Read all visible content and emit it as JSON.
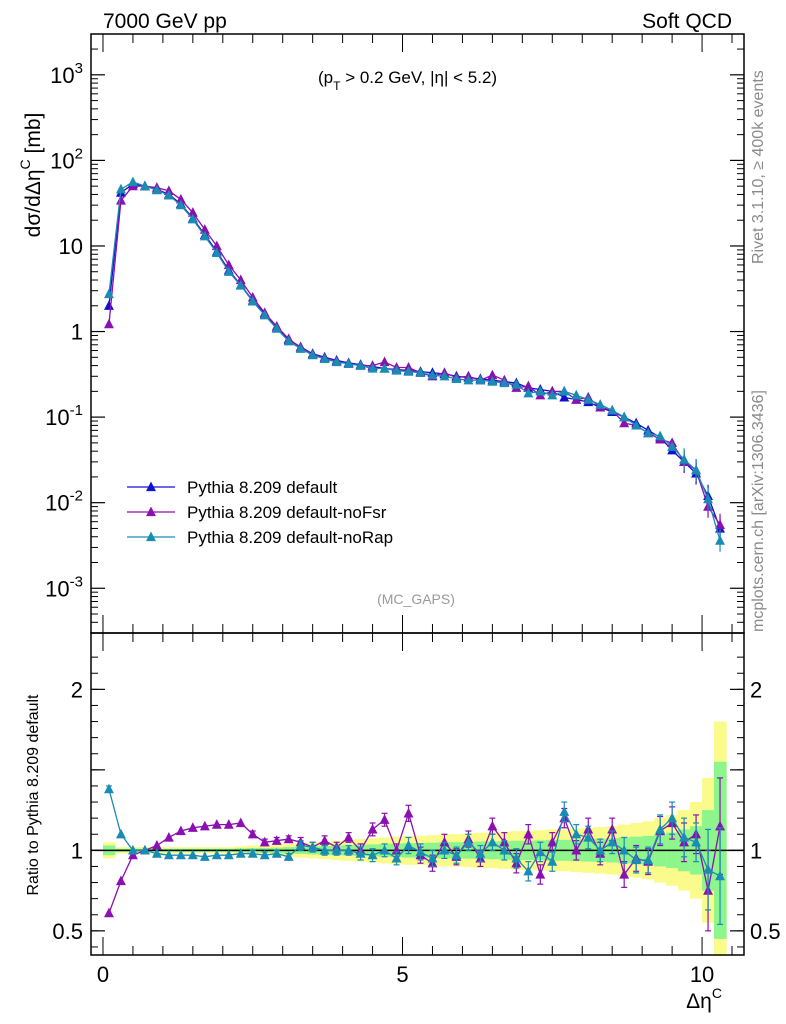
{
  "header": {
    "left": "7000 GeV pp",
    "right": "Soft QCD"
  },
  "side_labels": {
    "rivet": "Rivet 3.1.10, ≥ 400k events",
    "mcplots": "mcplots.cern.ch [arXiv:1306.3436]"
  },
  "annotation": {
    "cut": "(p_T > 0.2 GeV, |η| < 5.2)",
    "cut_parts": [
      "(p",
      "T",
      " > 0.2 GeV, |η| < 5.2)"
    ],
    "analysis": "(MC_GAPS)"
  },
  "colors": {
    "default": "#1010d0",
    "noFsr": "#8a10b0",
    "noRap": "#1a8cb4",
    "band_outer": "#fbfb8c",
    "band_inner": "#8cf58c"
  },
  "chart_data": [
    {
      "type": "line",
      "title": "",
      "ylabel": "dσ/dΔη^C [mb]",
      "ylabel_parts": [
        "dσ/dΔη",
        "C",
        " [mb]"
      ],
      "xlabel": "",
      "yscale": "log",
      "ylim": [
        0.0003,
        3000
      ],
      "xlim": [
        -0.2,
        10.7
      ],
      "y_tick_labels": [
        "10^-3",
        "10^-2",
        "10^-1",
        "1",
        "10",
        "10^2",
        "10^3"
      ],
      "legend_placement": "bottom-left",
      "x": [
        0.1,
        0.3,
        0.5,
        0.7,
        0.9,
        1.1,
        1.3,
        1.5,
        1.7,
        1.9,
        2.1,
        2.3,
        2.5,
        2.7,
        2.9,
        3.1,
        3.3,
        3.5,
        3.7,
        3.9,
        4.1,
        4.3,
        4.5,
        4.7,
        4.9,
        5.1,
        5.3,
        5.5,
        5.7,
        5.9,
        6.1,
        6.3,
        6.5,
        6.7,
        6.9,
        7.1,
        7.3,
        7.5,
        7.7,
        7.9,
        8.1,
        8.3,
        8.5,
        8.7,
        8.9,
        9.1,
        9.3,
        9.5,
        9.7,
        9.9,
        10.1,
        10.3
      ],
      "series": [
        {
          "name": "Pythia 8.209 default",
          "values": [
            2.0,
            42,
            53,
            50,
            46,
            40,
            31,
            21,
            13.5,
            8.6,
            5.2,
            3.5,
            2.3,
            1.6,
            1.1,
            0.8,
            0.66,
            0.55,
            0.5,
            0.46,
            0.43,
            0.41,
            0.39,
            0.37,
            0.36,
            0.35,
            0.34,
            0.33,
            0.32,
            0.3,
            0.29,
            0.28,
            0.27,
            0.26,
            0.25,
            0.22,
            0.21,
            0.2,
            0.17,
            0.16,
            0.15,
            0.13,
            0.115,
            0.1,
            0.085,
            0.07,
            0.058,
            0.041,
            0.03,
            0.022,
            0.012,
            0.005
          ]
        },
        {
          "name": "Pythia 8.209 default-noFsr",
          "values": [
            1.22,
            34,
            50,
            50,
            48,
            44,
            35,
            24.5,
            15.5,
            10,
            6.0,
            4.0,
            2.5,
            1.65,
            1.15,
            0.82,
            0.65,
            0.54,
            0.49,
            0.45,
            0.42,
            0.4,
            0.4,
            0.44,
            0.38,
            0.38,
            0.33,
            0.3,
            0.33,
            0.29,
            0.3,
            0.27,
            0.31,
            0.27,
            0.22,
            0.23,
            0.18,
            0.2,
            0.2,
            0.16,
            0.17,
            0.13,
            0.12,
            0.085,
            0.08,
            0.065,
            0.055,
            0.05,
            0.03,
            0.024,
            0.009,
            0.0055
          ]
        },
        {
          "name": "Pythia 8.209 default-noRap",
          "values": [
            2.75,
            46,
            56,
            50,
            45,
            39,
            30,
            20.5,
            13.0,
            8.3,
            5.0,
            3.45,
            2.25,
            1.55,
            1.08,
            0.77,
            0.63,
            0.53,
            0.48,
            0.44,
            0.42,
            0.4,
            0.37,
            0.37,
            0.35,
            0.34,
            0.33,
            0.31,
            0.3,
            0.28,
            0.27,
            0.27,
            0.26,
            0.25,
            0.24,
            0.19,
            0.2,
            0.18,
            0.2,
            0.18,
            0.16,
            0.14,
            0.12,
            0.1,
            0.08,
            0.065,
            0.06,
            0.045,
            0.032,
            0.024,
            0.011,
            0.0036
          ]
        }
      ]
    },
    {
      "type": "line",
      "title": "",
      "ylabel": "Ratio to Pythia 8.209 default",
      "xlabel": "Δη^C",
      "xlabel_parts": [
        "Δη",
        "C"
      ],
      "ylim": [
        0.35,
        2.35
      ],
      "xlim": [
        -0.2,
        10.7
      ],
      "x_tick_labels": [
        "0",
        "5",
        "10"
      ],
      "y_tick_labels": [
        "0.5",
        "1",
        "2"
      ],
      "x": [
        0.1,
        0.3,
        0.5,
        0.7,
        0.9,
        1.1,
        1.3,
        1.5,
        1.7,
        1.9,
        2.1,
        2.3,
        2.5,
        2.7,
        2.9,
        3.1,
        3.3,
        3.5,
        3.7,
        3.9,
        4.1,
        4.3,
        4.5,
        4.7,
        4.9,
        5.1,
        5.3,
        5.5,
        5.7,
        5.9,
        6.1,
        6.3,
        6.5,
        6.7,
        6.9,
        7.1,
        7.3,
        7.5,
        7.7,
        7.9,
        8.1,
        8.3,
        8.5,
        8.7,
        8.9,
        9.1,
        9.3,
        9.5,
        9.7,
        9.9,
        10.1,
        10.3
      ],
      "band_half_width_outer": [
        0.05,
        0.02,
        0.02,
        0.02,
        0.02,
        0.02,
        0.02,
        0.02,
        0.02,
        0.02,
        0.02,
        0.025,
        0.03,
        0.03,
        0.035,
        0.04,
        0.045,
        0.05,
        0.055,
        0.06,
        0.065,
        0.07,
        0.075,
        0.08,
        0.085,
        0.09,
        0.09,
        0.095,
        0.1,
        0.1,
        0.105,
        0.11,
        0.11,
        0.115,
        0.12,
        0.12,
        0.125,
        0.13,
        0.13,
        0.135,
        0.14,
        0.145,
        0.15,
        0.16,
        0.17,
        0.18,
        0.2,
        0.22,
        0.25,
        0.3,
        0.45,
        0.8
      ],
      "band_half_width_inner": [
        0.03,
        0.01,
        0.01,
        0.01,
        0.01,
        0.01,
        0.01,
        0.01,
        0.01,
        0.01,
        0.01,
        0.012,
        0.014,
        0.015,
        0.017,
        0.02,
        0.022,
        0.025,
        0.027,
        0.03,
        0.032,
        0.035,
        0.037,
        0.04,
        0.042,
        0.045,
        0.045,
        0.047,
        0.05,
        0.05,
        0.052,
        0.055,
        0.055,
        0.057,
        0.06,
        0.06,
        0.062,
        0.065,
        0.065,
        0.067,
        0.07,
        0.072,
        0.075,
        0.08,
        0.085,
        0.09,
        0.1,
        0.11,
        0.13,
        0.15,
        0.25,
        0.55
      ],
      "series": [
        {
          "name": "Pythia 8.209 default-noFsr",
          "values": [
            0.61,
            0.81,
            0.97,
            1.0,
            1.03,
            1.08,
            1.12,
            1.14,
            1.15,
            1.16,
            1.16,
            1.17,
            1.1,
            1.05,
            1.06,
            1.07,
            1.05,
            1.02,
            1.06,
            1.02,
            1.08,
            1.0,
            1.13,
            1.19,
            1.0,
            1.23,
            0.97,
            0.92,
            1.05,
            0.96,
            1.07,
            0.95,
            1.15,
            1.05,
            0.92,
            1.1,
            0.85,
            1.05,
            1.2,
            1.0,
            1.13,
            0.98,
            1.13,
            0.85,
            0.95,
            0.93,
            1.12,
            1.17,
            1.05,
            1.1,
            0.75,
            1.15
          ],
          "errors": [
            0.01,
            0.01,
            0.01,
            0.01,
            0.01,
            0.01,
            0.01,
            0.01,
            0.01,
            0.01,
            0.01,
            0.01,
            0.02,
            0.02,
            0.02,
            0.02,
            0.03,
            0.03,
            0.03,
            0.03,
            0.03,
            0.04,
            0.04,
            0.04,
            0.04,
            0.05,
            0.05,
            0.05,
            0.05,
            0.05,
            0.05,
            0.05,
            0.05,
            0.06,
            0.06,
            0.06,
            0.06,
            0.06,
            0.06,
            0.06,
            0.07,
            0.07,
            0.07,
            0.08,
            0.08,
            0.08,
            0.09,
            0.1,
            0.12,
            0.12,
            0.25,
            0.3
          ]
        },
        {
          "name": "Pythia 8.209 default-noRap",
          "values": [
            1.38,
            1.1,
            1.0,
            1.0,
            0.98,
            0.97,
            0.97,
            0.97,
            0.96,
            0.97,
            0.97,
            0.98,
            0.98,
            0.97,
            0.98,
            0.96,
            1.03,
            1.02,
            1.0,
            1.0,
            1.0,
            0.98,
            0.97,
            1.0,
            0.95,
            1.03,
            0.99,
            0.95,
            1.0,
            0.97,
            1.05,
            0.98,
            1.05,
            1.0,
            0.95,
            0.87,
            0.99,
            0.93,
            1.24,
            1.1,
            1.08,
            1.0,
            1.05,
            1.0,
            0.94,
            0.94,
            1.13,
            1.2,
            1.08,
            1.05,
            0.88,
            0.84
          ],
          "errors": [
            0.02,
            0.01,
            0.01,
            0.01,
            0.01,
            0.01,
            0.01,
            0.01,
            0.01,
            0.01,
            0.01,
            0.01,
            0.02,
            0.02,
            0.02,
            0.02,
            0.03,
            0.03,
            0.03,
            0.03,
            0.03,
            0.04,
            0.04,
            0.04,
            0.04,
            0.05,
            0.05,
            0.05,
            0.05,
            0.05,
            0.05,
            0.05,
            0.05,
            0.06,
            0.06,
            0.06,
            0.06,
            0.06,
            0.06,
            0.06,
            0.07,
            0.07,
            0.07,
            0.08,
            0.08,
            0.08,
            0.09,
            0.1,
            0.12,
            0.12,
            0.25,
            0.3
          ]
        }
      ]
    }
  ]
}
